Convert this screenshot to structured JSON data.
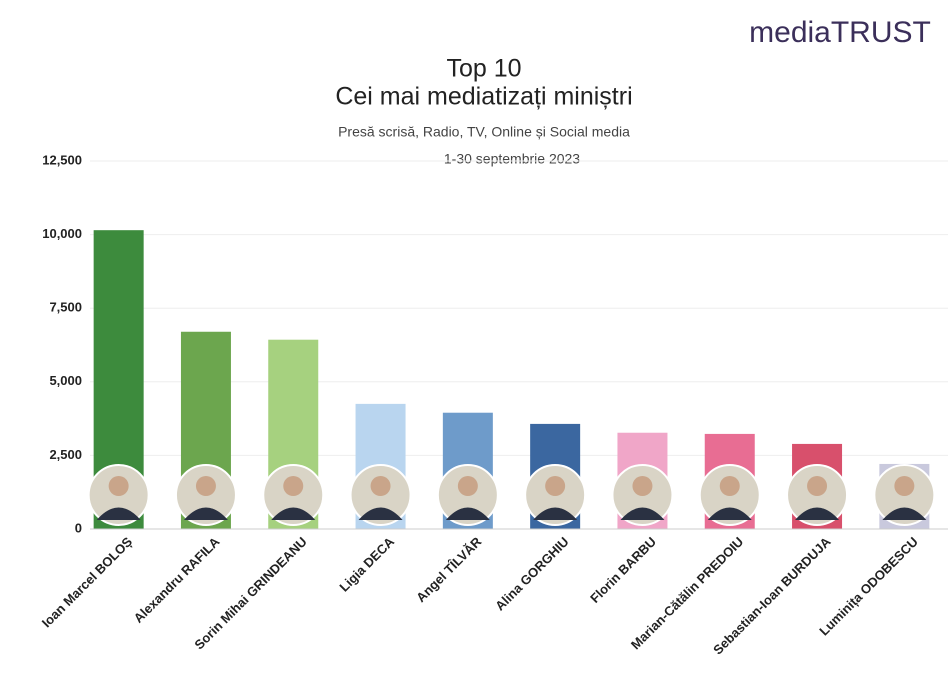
{
  "logo": "mediaTRUST",
  "chart_data": {
    "type": "bar",
    "title": [
      "Top 10",
      "Cei mai mediatizați miniștri"
    ],
    "subtitle": [
      "Presă scrisă, Radio, TV, Online și Social media",
      "1-30 septembrie 2023"
    ],
    "categories": [
      "Ioan Marcel BOLOȘ",
      "Alexandru RAFILA",
      "Sorin Mihai GRINDEANU",
      "Ligia DECA",
      "Angel TÎLVĂR",
      "Alina GORGHIU",
      "Florin BARBU",
      "Marian-Cătălin PREDOIU",
      "Sebastian-Ioan BURDUJA",
      "Luminița ODOBESCU"
    ],
    "values": [
      10150,
      6700,
      6430,
      4250,
      3950,
      3570,
      3270,
      3230,
      2890,
      2210
    ],
    "colors": [
      "#3d8b3d",
      "#6ca64e",
      "#a6d17f",
      "#b9d5ef",
      "#6e9bca",
      "#3b67a0",
      "#f0a6c8",
      "#e86d93",
      "#d8506c",
      "#c9c9dd"
    ],
    "ylim": [
      0,
      12500
    ],
    "yticks": [
      0,
      {
        "value": 2500,
        "label": "2,500"
      },
      {
        "value": 5000,
        "label": "5,000"
      },
      {
        "value": 7500,
        "label": "7,500"
      },
      {
        "value": 10000,
        "label": "10,000"
      },
      {
        "value": 12500,
        "label": "12,500"
      }
    ],
    "grid": true
  }
}
